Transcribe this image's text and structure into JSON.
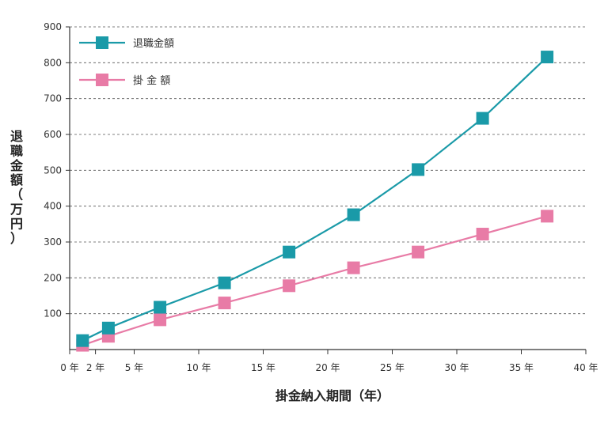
{
  "chart_data": {
    "type": "line",
    "x": [
      1,
      3,
      7,
      12,
      17,
      22,
      27,
      32,
      37
    ],
    "series": [
      {
        "name": "退職金額",
        "color": "#1a9aa8",
        "values": [
          25,
          60,
          118,
          186,
          272,
          376,
          502,
          645,
          816
        ]
      },
      {
        "name": "掛 金 額",
        "color": "#e87ba6",
        "values": [
          12,
          37,
          83,
          130,
          178,
          228,
          272,
          322,
          372
        ]
      }
    ],
    "xlim": [
      0,
      40
    ],
    "ylim": [
      0,
      900
    ],
    "xticks": [
      0,
      2,
      5,
      10,
      15,
      20,
      25,
      30,
      35,
      40
    ],
    "xtick_labels": [
      "0 年",
      "2 年",
      "5 年",
      "10 年",
      "15 年",
      "20 年",
      "25 年",
      "30 年",
      "35 年",
      "40 年"
    ],
    "yticks": [
      100,
      200,
      300,
      400,
      500,
      600,
      700,
      800,
      900
    ],
    "ytick_labels": [
      "100",
      "200",
      "300",
      "400",
      "500",
      "600",
      "700",
      "800",
      "900"
    ],
    "xlabel": "掛金納入期間（年）",
    "ylabel": "退職金額（万円）",
    "grid": "horizontal-dashed",
    "legend_position": "top-left"
  }
}
